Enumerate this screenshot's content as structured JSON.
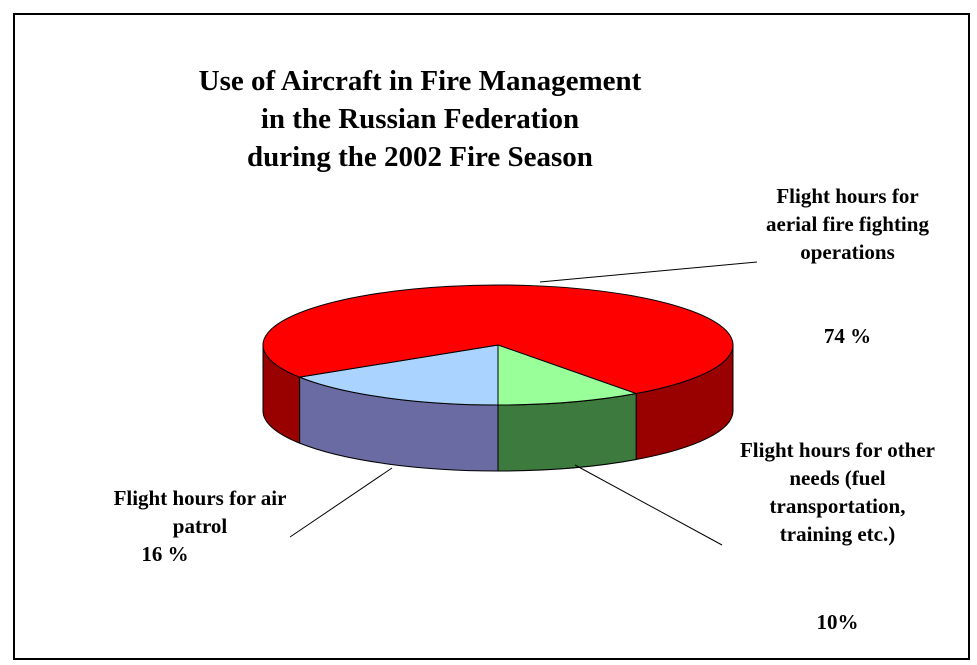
{
  "chart_data": {
    "type": "pie",
    "title": [
      "Use of Aircraft in Fire Management",
      "in the Russian Federation",
      "during the 2002 Fire Season"
    ],
    "categories": [
      "Flight hours for air patrol",
      "Flight hours for aerial fire fighting operations",
      "Flight hours for other needs (fuel transportation, training etc.)"
    ],
    "values": [
      16,
      74,
      10
    ],
    "value_labels": [
      "16 %",
      "74 %",
      "10%"
    ],
    "colors": [
      "#aad4ff",
      "#ff0000",
      "#99ff99"
    ],
    "side_colors": [
      "#6b6ba3",
      "#990000",
      "#3d7a3d"
    ]
  }
}
